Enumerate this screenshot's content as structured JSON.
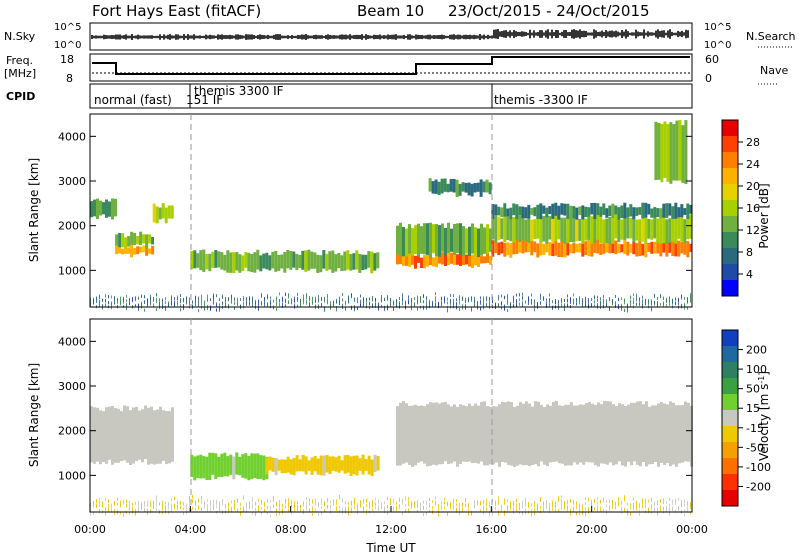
{
  "header": {
    "station": "Fort Hays East (fitACF)",
    "beam": "Beam 10",
    "date_range": "23/Oct/2015 - 24/Oct/2015"
  },
  "strip_panels": {
    "noise": {
      "left_label": "N.Sky",
      "left_ticks": [
        "10^5",
        "10^0"
      ],
      "right_label": "N.Search",
      "right_ticks": [
        "10^5",
        "10^0"
      ]
    },
    "freq": {
      "left_label_lines": [
        "Freq.",
        "[MHz]"
      ],
      "left_ticks": [
        "18",
        "8"
      ],
      "right_label": "Nave",
      "right_ticks": [
        "60",
        "0"
      ]
    },
    "cpid": {
      "label": "CPID",
      "segments": [
        "normal (fast)",
        "151 IF",
        "themis 3300 IF",
        "themis -3300 IF"
      ]
    }
  },
  "colorbars": {
    "power": {
      "title": "Power [dB]",
      "ticks": [
        "28",
        "24",
        "20",
        "16",
        "12",
        "8",
        "4"
      ],
      "colors": [
        "#e60000",
        "#ff4000",
        "#ff8000",
        "#ffb000",
        "#e6d200",
        "#a8d000",
        "#6fb040",
        "#3a8a5a",
        "#2a6a80",
        "#1f4aa8",
        "#0000ff"
      ]
    },
    "velocity": {
      "title": "Velocity [m s^-1]",
      "ticks": [
        "200",
        "100",
        "50",
        "15",
        "-15",
        "-50",
        "-100",
        "-200"
      ],
      "colors": [
        "#1040c0",
        "#1e6aa0",
        "#2e8060",
        "#3aa040",
        "#70d030",
        "#c8c8c0",
        "#f0c800",
        "#f5a000",
        "#ff7000",
        "#ff3000",
        "#e60000"
      ]
    }
  },
  "chart_data": [
    {
      "type": "heatmap",
      "title": "Power",
      "ylabel": "Slant Range [km]",
      "ylim": [
        180,
        4500
      ],
      "y_ticks": [
        1000,
        2000,
        3000,
        4000
      ],
      "xlim_hours": [
        0,
        24
      ],
      "x_tick_labels": [
        "00:00",
        "04:00",
        "08:00",
        "12:00",
        "16:00",
        "20:00",
        "00:00"
      ],
      "regions": [
        {
          "t0": 0.0,
          "t1": 1.0,
          "r0": 2200,
          "r1": 2550,
          "value": 10
        },
        {
          "t0": 1.0,
          "t1": 2.5,
          "r0": 1350,
          "r1": 1550,
          "value": 22
        },
        {
          "t0": 1.0,
          "t1": 2.5,
          "r0": 1550,
          "r1": 1800,
          "value": 12
        },
        {
          "t0": 2.5,
          "t1": 3.3,
          "r0": 2100,
          "r1": 2450,
          "value": 16
        },
        {
          "t0": 4.0,
          "t1": 11.5,
          "r0": 1000,
          "r1": 1400,
          "value": 12
        },
        {
          "t0": 12.2,
          "t1": 16.0,
          "r0": 1100,
          "r1": 1350,
          "value": 24
        },
        {
          "t0": 12.2,
          "t1": 16.0,
          "r0": 1350,
          "r1": 2000,
          "value": 12
        },
        {
          "t0": 16.0,
          "t1": 24.0,
          "r0": 1350,
          "r1": 1650,
          "value": 24
        },
        {
          "t0": 16.0,
          "t1": 24.0,
          "r0": 1650,
          "r1": 2200,
          "value": 14
        },
        {
          "t0": 16.0,
          "t1": 24.0,
          "r0": 2200,
          "r1": 2450,
          "value": 8
        },
        {
          "t0": 13.5,
          "t1": 16.0,
          "r0": 2700,
          "r1": 3000,
          "value": 8
        },
        {
          "t0": 22.5,
          "t1": 23.8,
          "r0": 3000,
          "r1": 4300,
          "value": 14
        },
        {
          "t0": 0.0,
          "t1": 24.0,
          "r0": 180,
          "r1": 450,
          "value": 6
        }
      ]
    },
    {
      "type": "heatmap",
      "title": "Velocity",
      "ylabel": "Slant Range [km]",
      "ylim": [
        180,
        4500
      ],
      "y_ticks": [
        1000,
        2000,
        3000,
        4000
      ],
      "xlim_hours": [
        0,
        24
      ],
      "x_tick_labels": [
        "00:00",
        "04:00",
        "08:00",
        "12:00",
        "16:00",
        "20:00",
        "00:00"
      ],
      "xlabel": "Time UT",
      "regions": [
        {
          "t0": 0.0,
          "t1": 3.3,
          "r0": 1300,
          "r1": 2500,
          "value": 0
        },
        {
          "t0": 4.0,
          "t1": 7.0,
          "r0": 950,
          "r1": 1450,
          "value": 40
        },
        {
          "t0": 7.0,
          "t1": 11.5,
          "r0": 1050,
          "r1": 1400,
          "value": -40
        },
        {
          "t0": 12.2,
          "t1": 24.0,
          "r0": 1250,
          "r1": 2600,
          "value": 0
        },
        {
          "t0": 0.0,
          "t1": 24.0,
          "r0": 180,
          "r1": 500,
          "value": -30
        }
      ]
    }
  ]
}
